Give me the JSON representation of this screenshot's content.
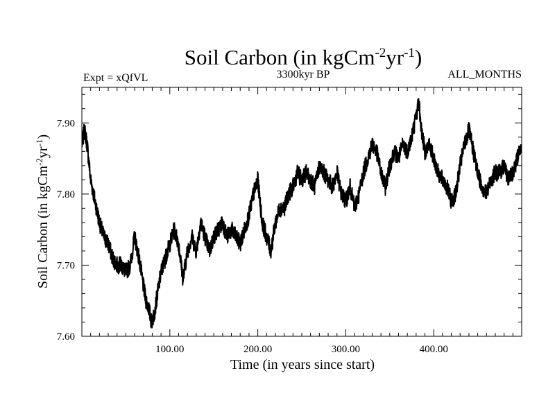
{
  "header": {
    "experiment": "Expt = xQfVL",
    "period": "3300kyr BP",
    "months": "ALL_MONTHS"
  },
  "colors": {
    "line": "#000000",
    "axis": "#000000",
    "background": "#ffffff"
  },
  "chart_data": {
    "type": "line",
    "title": "Soil Carbon (in kgCm-2yr-1)",
    "title_parts": {
      "base": "Soil Carbon (in kgCm",
      "exp1": "-2",
      "mid": "yr",
      "exp2": "-1",
      "end": ")"
    },
    "xlabel": "Time (in years since start)",
    "ylabel": "Soil Carbon (in kgCm-2yr-1)",
    "ylabel_parts": {
      "base": "Soil Carbon (in kgCm",
      "exp1": "-2",
      "mid": "yr",
      "exp2": "-1",
      "end": ")"
    },
    "xlim": [
      0,
      500
    ],
    "ylim": [
      7.6,
      7.95
    ],
    "xticks": [
      100,
      200,
      300,
      400
    ],
    "xtick_labels": [
      "100.00",
      "200.00",
      "300.00",
      "400.00"
    ],
    "yticks": [
      7.6,
      7.7,
      7.8,
      7.9
    ],
    "ytick_labels": [
      "7.60",
      "7.70",
      "7.80",
      "7.90"
    ],
    "grid": false,
    "series": [
      {
        "name": "Soil Carbon",
        "noise_amplitude": 0.012,
        "x": [
          0,
          3,
          6,
          10,
          15,
          20,
          25,
          30,
          35,
          40,
          45,
          50,
          55,
          60,
          65,
          70,
          73,
          76,
          79,
          82,
          86,
          90,
          95,
          100,
          105,
          110,
          115,
          120,
          125,
          130,
          135,
          140,
          145,
          150,
          155,
          160,
          165,
          170,
          175,
          180,
          185,
          190,
          195,
          200,
          205,
          210,
          215,
          220,
          225,
          230,
          235,
          240,
          245,
          250,
          255,
          260,
          265,
          270,
          275,
          280,
          285,
          290,
          295,
          300,
          305,
          310,
          315,
          320,
          325,
          330,
          335,
          340,
          345,
          350,
          355,
          360,
          365,
          370,
          375,
          380,
          383,
          386,
          390,
          395,
          400,
          405,
          410,
          415,
          420,
          425,
          430,
          435,
          440,
          445,
          450,
          455,
          460,
          465,
          470,
          475,
          480,
          485,
          490,
          495,
          499
        ],
        "y": [
          7.87,
          7.89,
          7.87,
          7.82,
          7.79,
          7.76,
          7.74,
          7.73,
          7.71,
          7.7,
          7.7,
          7.69,
          7.7,
          7.74,
          7.71,
          7.67,
          7.65,
          7.64,
          7.62,
          7.63,
          7.66,
          7.69,
          7.71,
          7.73,
          7.75,
          7.73,
          7.68,
          7.72,
          7.74,
          7.72,
          7.76,
          7.74,
          7.72,
          7.74,
          7.75,
          7.76,
          7.74,
          7.75,
          7.74,
          7.73,
          7.75,
          7.77,
          7.8,
          7.82,
          7.76,
          7.74,
          7.72,
          7.76,
          7.78,
          7.78,
          7.8,
          7.81,
          7.83,
          7.82,
          7.83,
          7.82,
          7.81,
          7.84,
          7.83,
          7.82,
          7.81,
          7.83,
          7.8,
          7.79,
          7.81,
          7.78,
          7.8,
          7.83,
          7.85,
          7.87,
          7.86,
          7.83,
          7.81,
          7.84,
          7.86,
          7.85,
          7.87,
          7.86,
          7.88,
          7.91,
          7.93,
          7.89,
          7.86,
          7.87,
          7.85,
          7.83,
          7.82,
          7.81,
          7.79,
          7.8,
          7.84,
          7.87,
          7.89,
          7.86,
          7.83,
          7.81,
          7.8,
          7.82,
          7.83,
          7.83,
          7.84,
          7.82,
          7.83,
          7.85,
          7.87
        ]
      }
    ]
  }
}
